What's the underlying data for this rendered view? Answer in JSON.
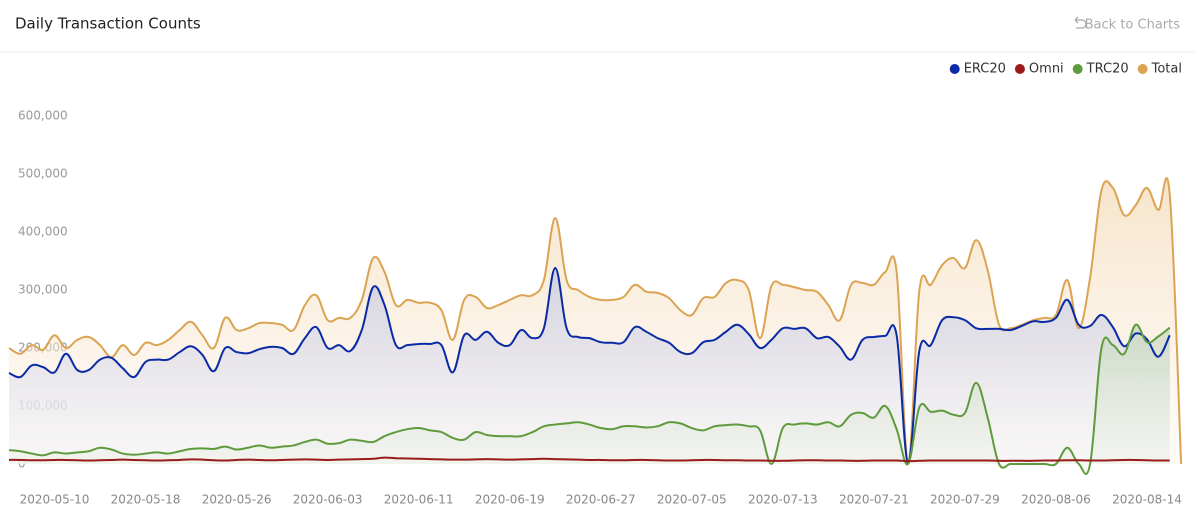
{
  "back_link": "Back to Charts",
  "chart_data": {
    "type": "line",
    "title": "Daily Transaction Counts",
    "categories": [
      null,
      null,
      null,
      null,
      "2020-05-10",
      null,
      null,
      null,
      null,
      null,
      null,
      null,
      "2020-05-18",
      null,
      null,
      null,
      null,
      null,
      null,
      null,
      "2020-05-26",
      null,
      null,
      null,
      null,
      null,
      null,
      null,
      "2020-06-03",
      null,
      null,
      null,
      null,
      null,
      null,
      null,
      "2020-06-11",
      null,
      null,
      null,
      null,
      null,
      null,
      null,
      "2020-06-19",
      null,
      null,
      null,
      null,
      null,
      null,
      null,
      "2020-06-27",
      null,
      null,
      null,
      null,
      null,
      null,
      null,
      "2020-07-05",
      null,
      null,
      null,
      null,
      null,
      null,
      null,
      "2020-07-13",
      null,
      null,
      null,
      null,
      null,
      null,
      null,
      "2020-07-21",
      null,
      null,
      null,
      null,
      null,
      null,
      null,
      "2020-07-29",
      null,
      null,
      null,
      null,
      null,
      null,
      null,
      "2020-08-06",
      null,
      null,
      null,
      null,
      null,
      null,
      null,
      "2020-08-14",
      null,
      null,
      null
    ],
    "series": [
      {
        "name": "ERC20",
        "color": "#0a2aa6",
        "values": [
          157000,
          150000,
          170000,
          167000,
          158000,
          190000,
          162000,
          162000,
          180000,
          183000,
          165000,
          150000,
          176000,
          180000,
          180000,
          193000,
          203000,
          188000,
          160000,
          200000,
          193000,
          191000,
          198000,
          202000,
          200000,
          190000,
          217000,
          236000,
          200000,
          205000,
          195000,
          231000,
          305000,
          274000,
          205000,
          205000,
          207000,
          207000,
          205000,
          158000,
          222000,
          214000,
          228000,
          209000,
          205000,
          231000,
          217000,
          234000,
          338000,
          234000,
          219000,
          217000,
          210000,
          209000,
          210000,
          236000,
          228000,
          217000,
          209000,
          193000,
          191000,
          210000,
          214000,
          228000,
          240000,
          224000,
          200000,
          214000,
          234000,
          233000,
          234000,
          217000,
          219000,
          202000,
          180000,
          214000,
          219000,
          221000,
          222000,
          2000,
          196000,
          205000,
          248000,
          253000,
          248000,
          234000,
          233000,
          233000,
          231000,
          238000,
          246000,
          245000,
          252000,
          283000,
          240000,
          238000,
          257000,
          236000,
          203000,
          225000,
          215000,
          185000,
          222000,
          null
        ]
      },
      {
        "name": "Omni",
        "color": "#9b1b1b",
        "values": [
          7000,
          7000,
          6500,
          6500,
          7000,
          7000,
          6500,
          6000,
          6500,
          7000,
          7500,
          7000,
          6500,
          6000,
          6500,
          7000,
          8000,
          7500,
          6500,
          6000,
          7000,
          7500,
          7000,
          6500,
          7000,
          7500,
          8000,
          7500,
          7000,
          7500,
          8000,
          8500,
          9000,
          11000,
          10000,
          9500,
          9000,
          8500,
          8000,
          7500,
          7500,
          8000,
          8500,
          8000,
          7500,
          8000,
          8500,
          9000,
          8500,
          8000,
          7500,
          7000,
          7000,
          6500,
          6500,
          7000,
          7000,
          6500,
          6000,
          6000,
          6500,
          7000,
          7000,
          6500,
          6500,
          6000,
          6000,
          5500,
          5500,
          6000,
          6500,
          6500,
          6000,
          6000,
          5500,
          5500,
          6000,
          6000,
          6000,
          5000,
          5500,
          6000,
          6000,
          6000,
          6000,
          6000,
          6000,
          5500,
          5500,
          5500,
          5500,
          6000,
          6000,
          6500,
          6500,
          6000,
          6000,
          6500,
          7000,
          7000,
          6500,
          6000,
          6000,
          null
        ]
      },
      {
        "name": "TRC20",
        "color": "#5e9b3c",
        "values": [
          24000,
          22000,
          18000,
          15000,
          20000,
          18000,
          20000,
          22000,
          28000,
          25000,
          18000,
          16000,
          18000,
          20000,
          18000,
          22000,
          26000,
          27000,
          26000,
          30000,
          25000,
          28000,
          32000,
          28000,
          30000,
          32000,
          38000,
          42000,
          35000,
          36000,
          42000,
          40000,
          38000,
          48000,
          55000,
          60000,
          62000,
          58000,
          55000,
          45000,
          42000,
          55000,
          50000,
          48000,
          48000,
          48000,
          55000,
          65000,
          68000,
          70000,
          72000,
          68000,
          62000,
          60000,
          65000,
          65000,
          63000,
          65000,
          72000,
          70000,
          62000,
          58000,
          65000,
          67000,
          68000,
          65000,
          58000,
          0,
          62000,
          68000,
          70000,
          68000,
          72000,
          65000,
          85000,
          88000,
          80000,
          100000,
          60000,
          0,
          98000,
          90000,
          92000,
          85000,
          88000,
          140000,
          80000,
          0,
          0,
          0,
          0,
          0,
          0,
          28000,
          0,
          0,
          200000,
          205000,
          190000,
          240000,
          210000,
          220000,
          235000,
          null
        ]
      },
      {
        "name": "Total",
        "color": "#dba352",
        "values": [
          200000,
          190000,
          205000,
          197000,
          222000,
          200000,
          214000,
          219000,
          205000,
          184000,
          205000,
          188000,
          209000,
          205000,
          214000,
          231000,
          245000,
          222000,
          200000,
          252000,
          231000,
          234000,
          243000,
          243000,
          240000,
          231000,
          274000,
          291000,
          248000,
          252000,
          252000,
          283000,
          355000,
          331000,
          274000,
          283000,
          278000,
          278000,
          265000,
          214000,
          283000,
          288000,
          269000,
          274000,
          283000,
          291000,
          291000,
          317000,
          424000,
          317000,
          300000,
          288000,
          283000,
          283000,
          288000,
          309000,
          297000,
          295000,
          286000,
          265000,
          257000,
          286000,
          288000,
          312000,
          317000,
          300000,
          217000,
          307000,
          309000,
          305000,
          300000,
          297000,
          274000,
          248000,
          309000,
          312000,
          309000,
          331000,
          331000,
          2000,
          300000,
          309000,
          343000,
          355000,
          338000,
          386000,
          334000,
          240000,
          234000,
          240000,
          248000,
          252000,
          257000,
          317000,
          234000,
          321000,
          472000,
          476000,
          429000,
          446000,
          476000,
          438000,
          464000,
          0
        ]
      }
    ],
    "ylim": [
      0,
      600000
    ],
    "yticks": [
      0,
      {
        "value": 100000,
        "label": "100,000"
      },
      {
        "value": 200000,
        "label": "200,000"
      },
      {
        "value": 300000,
        "label": "300,000"
      },
      {
        "value": 400000,
        "label": "400,000"
      },
      {
        "value": 500000,
        "label": "500,000"
      },
      {
        "value": 600000,
        "label": "600,000"
      }
    ],
    "grid": false,
    "legend": "top-right"
  }
}
